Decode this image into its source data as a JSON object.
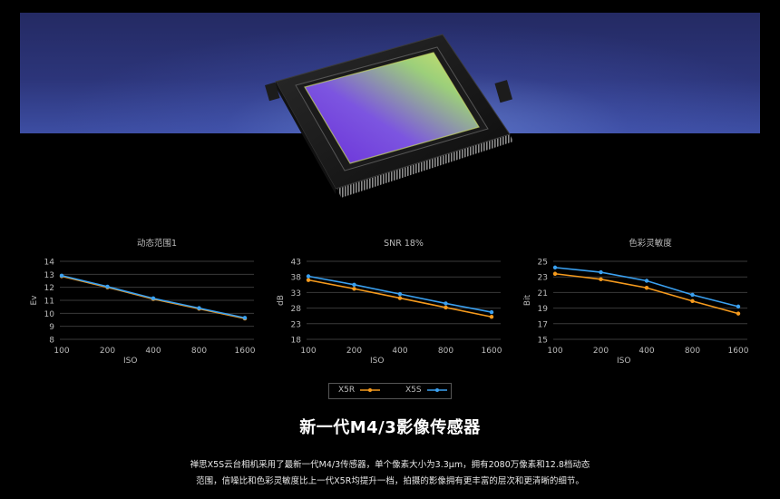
{
  "colors": {
    "xsr": "#f59a1d",
    "xss": "#3aa0f0",
    "grid": "#3a3a3a",
    "axis_text": "#bbbbbb"
  },
  "legend": {
    "xsr": "X5R",
    "xss": "X5S"
  },
  "headline": "新一代M4/3影像传感器",
  "description": [
    "禅思X5S云台相机采用了最新一代M4/3传感器，单个像素大小为3.3μm，拥有2080万像素和12.8档动态",
    "范围，信噪比和色彩灵敏度比上一代X5R均提升一档，拍摄的影像拥有更丰富的层次和更清晰的细节。"
  ],
  "chart_data": [
    {
      "type": "line",
      "title": "动态范围1",
      "xlabel": "ISO",
      "ylabel": "Ev",
      "categories": [
        "100",
        "200",
        "400",
        "800",
        "1600"
      ],
      "ylim": [
        8,
        14
      ],
      "yticks": [
        8,
        9,
        10,
        11,
        12,
        13,
        14
      ],
      "series": [
        {
          "name": "X5R",
          "color": "#f59a1d",
          "values": [
            12.85,
            12.0,
            11.1,
            10.35,
            9.6
          ]
        },
        {
          "name": "X5S",
          "color": "#3aa0f0",
          "values": [
            12.9,
            12.05,
            11.15,
            10.4,
            9.65
          ]
        }
      ]
    },
    {
      "type": "line",
      "title": "SNR 18%",
      "xlabel": "ISO",
      "ylabel": "dB",
      "categories": [
        "100",
        "200",
        "400",
        "800",
        "1600"
      ],
      "ylim": [
        18,
        43
      ],
      "yticks": [
        18,
        23,
        28,
        33,
        38,
        43
      ],
      "series": [
        {
          "name": "X5R",
          "color": "#f59a1d",
          "values": [
            37.0,
            34.2,
            31.2,
            28.2,
            25.2
          ]
        },
        {
          "name": "X5S",
          "color": "#3aa0f0",
          "values": [
            38.2,
            35.5,
            32.5,
            29.5,
            26.7
          ]
        }
      ]
    },
    {
      "type": "line",
      "title": "色彩灵敏度",
      "xlabel": "ISO",
      "ylabel": "Bit",
      "categories": [
        "100",
        "200",
        "400",
        "800",
        "1600"
      ],
      "ylim": [
        15,
        25
      ],
      "yticks": [
        15,
        17,
        19,
        21,
        23,
        25
      ],
      "series": [
        {
          "name": "X5R",
          "color": "#f59a1d",
          "values": [
            23.4,
            22.7,
            21.6,
            19.9,
            18.3
          ]
        },
        {
          "name": "X5S",
          "color": "#3aa0f0",
          "values": [
            24.2,
            23.6,
            22.5,
            20.7,
            19.2
          ]
        }
      ]
    }
  ]
}
